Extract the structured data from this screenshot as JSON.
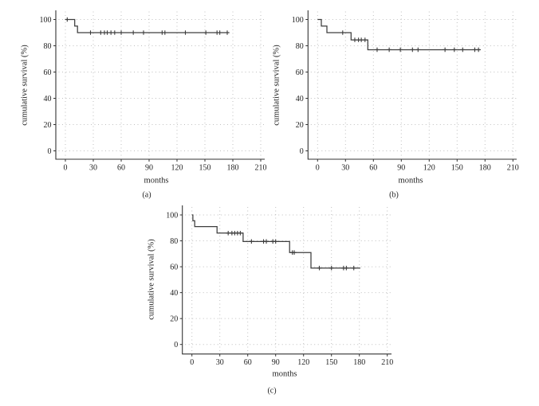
{
  "figure": {
    "background": "#ffffff",
    "text_color": "#1f1f1f",
    "curve_color": "#3d3d3d",
    "grid_color": "#bfbfbf",
    "axis_color": "#333333"
  },
  "chart_data": [
    {
      "id": "a",
      "type": "line",
      "subtype": "kaplan-meier-step",
      "panel_label": "(a)",
      "xlabel": "months",
      "ylabel": "cumulative survival (%)",
      "xlim": [
        0,
        220
      ],
      "ylim": [
        0,
        100
      ],
      "x_ticks": [
        0,
        30,
        60,
        90,
        120,
        150,
        180,
        210
      ],
      "y_ticks": [
        0,
        20,
        40,
        60,
        80,
        100
      ],
      "grid": "dotted",
      "legend": "none",
      "series": [
        {
          "name": "cumulative survival",
          "steps": [
            [
              0,
              100
            ],
            [
              10,
              100
            ],
            [
              10,
              95
            ],
            [
              13,
              95
            ],
            [
              13,
              90
            ],
            [
              176,
              90
            ]
          ],
          "censor_marks": [
            [
              2,
              100
            ],
            [
              27,
              90
            ],
            [
              38,
              90
            ],
            [
              42,
              90
            ],
            [
              45,
              90
            ],
            [
              49,
              90
            ],
            [
              53,
              90
            ],
            [
              60,
              90
            ],
            [
              73,
              90
            ],
            [
              84,
              90
            ],
            [
              104,
              90
            ],
            [
              107,
              90
            ],
            [
              129,
              90
            ],
            [
              151,
              90
            ],
            [
              163,
              90
            ],
            [
              166,
              90
            ],
            [
              174,
              90
            ]
          ]
        }
      ]
    },
    {
      "id": "b",
      "type": "line",
      "subtype": "kaplan-meier-step",
      "panel_label": "(b)",
      "xlabel": "months",
      "ylabel": "cumulative survival (%)",
      "xlim": [
        0,
        220
      ],
      "ylim": [
        0,
        100
      ],
      "x_ticks": [
        0,
        30,
        60,
        90,
        120,
        150,
        180,
        210
      ],
      "y_ticks": [
        0,
        20,
        40,
        60,
        80,
        100
      ],
      "grid": "dotted",
      "legend": "none",
      "series": [
        {
          "name": "cumulative survival",
          "steps": [
            [
              0,
              100
            ],
            [
              4,
              100
            ],
            [
              4,
              95
            ],
            [
              10,
              95
            ],
            [
              10,
              90
            ],
            [
              36,
              90
            ],
            [
              36,
              84.5
            ],
            [
              54,
              84.5
            ],
            [
              54,
              77
            ],
            [
              175,
              77
            ]
          ],
          "censor_marks": [
            [
              27,
              90
            ],
            [
              40,
              84.5
            ],
            [
              44,
              84.5
            ],
            [
              47,
              84.5
            ],
            [
              51,
              84.5
            ],
            [
              64,
              77
            ],
            [
              77,
              77
            ],
            [
              89,
              77
            ],
            [
              102,
              77
            ],
            [
              108,
              77
            ],
            [
              137,
              77
            ],
            [
              147,
              77
            ],
            [
              156,
              77
            ],
            [
              169,
              77
            ],
            [
              173,
              77
            ]
          ]
        }
      ]
    },
    {
      "id": "c",
      "type": "line",
      "subtype": "kaplan-meier-step",
      "panel_label": "(c)",
      "xlabel": "months",
      "ylabel": "cumulative survival (%)",
      "xlim": [
        0,
        220
      ],
      "ylim": [
        0,
        100
      ],
      "x_ticks": [
        0,
        30,
        60,
        90,
        120,
        150,
        180,
        210
      ],
      "y_ticks": [
        0,
        20,
        40,
        60,
        80,
        100
      ],
      "grid": "dotted",
      "legend": "none",
      "series": [
        {
          "name": "cumulative survival",
          "steps": [
            [
              0,
              100
            ],
            [
              1,
              100
            ],
            [
              1,
              95.5
            ],
            [
              3,
              95.5
            ],
            [
              3,
              91
            ],
            [
              27,
              91
            ],
            [
              27,
              86
            ],
            [
              55,
              86
            ],
            [
              55,
              79.5
            ],
            [
              105,
              79.5
            ],
            [
              105,
              71
            ],
            [
              128,
              71
            ],
            [
              128,
              59
            ],
            [
              181,
              59
            ]
          ],
          "censor_marks": [
            [
              39,
              86
            ],
            [
              43,
              86
            ],
            [
              46,
              86
            ],
            [
              49,
              86
            ],
            [
              52,
              86
            ],
            [
              64,
              79.5
            ],
            [
              77,
              79.5
            ],
            [
              80,
              79.5
            ],
            [
              87,
              79.5
            ],
            [
              90,
              79.5
            ],
            [
              108,
              71
            ],
            [
              110,
              71
            ],
            [
              137,
              59
            ],
            [
              150,
              59
            ],
            [
              163,
              59
            ],
            [
              166,
              59
            ],
            [
              174,
              59
            ]
          ]
        }
      ]
    }
  ]
}
